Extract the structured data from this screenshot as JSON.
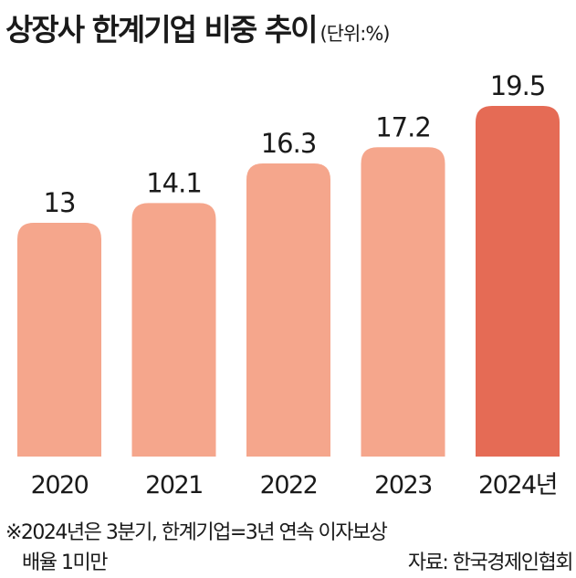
{
  "header": {
    "title": "상장사 한계기업 비중 추이",
    "unit": "(단위:%)"
  },
  "footnote": {
    "line1": "※2024년은 3분기, 한계기업=3년 연속 이자보상",
    "line2": "배율 1미만",
    "source": "자료: 한국경제인협회"
  },
  "colors": {
    "bar": "#f5a68c",
    "highlight": "#e56b55",
    "text": "#1a1a1a"
  },
  "chart_data": {
    "type": "bar",
    "title": "상장사 한계기업 비중 추이",
    "unit": "(단위:%)",
    "categories": [
      "2020",
      "2021",
      "2022",
      "2023",
      "2024년"
    ],
    "values": [
      13,
      14.1,
      16.3,
      17.2,
      19.5
    ],
    "value_labels": [
      "13",
      "14.1",
      "16.3",
      "17.2",
      "19.5"
    ],
    "highlight_index": 4,
    "ylim": [
      0,
      19.5
    ]
  }
}
